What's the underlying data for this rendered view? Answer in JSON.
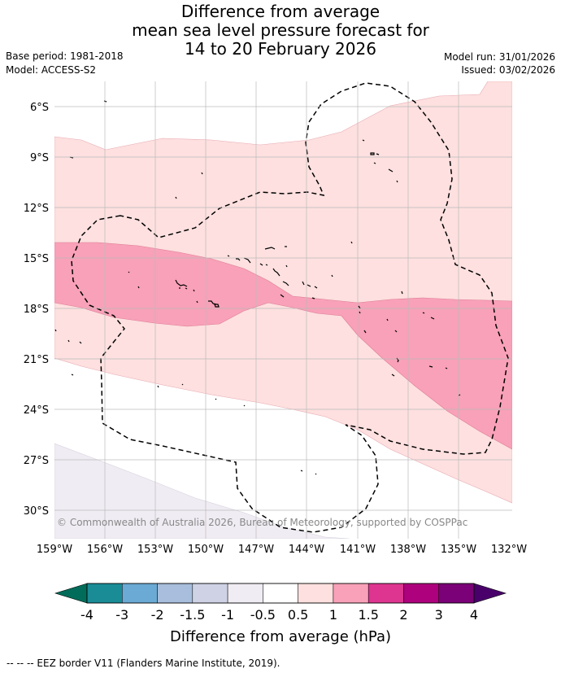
{
  "title": {
    "line1": "Difference from average",
    "line2": "mean sea level pressure forecast for",
    "line3": "14 to 20 February 2026"
  },
  "meta": {
    "base_period": "Base period: 1981-2018",
    "model": "Model: ACCESS-S2",
    "model_run": "Model run: 31/01/2026",
    "issued": "Issued: 03/02/2026"
  },
  "map": {
    "lat_labels": [
      "6°S",
      "9°S",
      "12°S",
      "15°S",
      "18°S",
      "21°S",
      "24°S",
      "27°S",
      "30°S"
    ],
    "lon_labels": [
      "159°W",
      "156°W",
      "153°W",
      "150°W",
      "147°W",
      "144°W",
      "141°W",
      "138°W",
      "135°W",
      "132°W"
    ],
    "copyright": "© Commonwealth of Australia 2026, Bureau of Meteorology, supported by COSPPac"
  },
  "colorbar": {
    "ticks": [
      "-4",
      "-3",
      "-2",
      "-1.5",
      "-1",
      "-0.5",
      "0.5",
      "1",
      "1.5",
      "2",
      "3",
      "4"
    ],
    "label": "Difference from average (hPa)",
    "colors": [
      "#1a8c96",
      "#6aaad4",
      "#a8bedc",
      "#cfd2e4",
      "#f0ecf3",
      "#ffffff",
      "#fde0df",
      "#f8a1b8",
      "#dd3590",
      "#ad017d",
      "#7a0177"
    ],
    "low_extend_color": "#016c59",
    "high_extend_color": "#49006a"
  },
  "legend": {
    "eez_text": "--  --  -- EEZ border V11 (Flanders Marine Institute, 2019)."
  }
}
